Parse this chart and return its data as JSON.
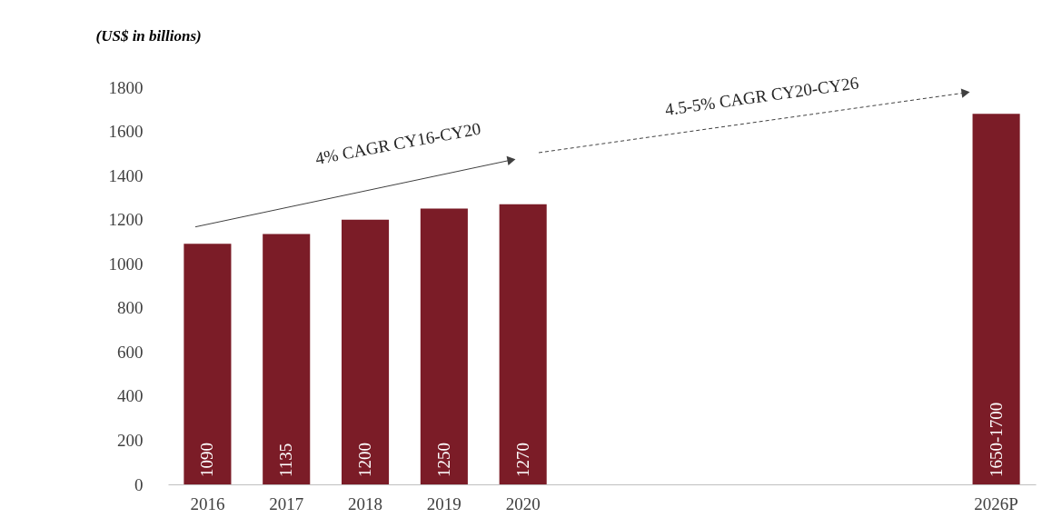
{
  "chart_data": {
    "type": "bar",
    "ylabel": "(US$ in billions)",
    "categories": [
      "2016",
      "2017",
      "2018",
      "2019",
      "2020",
      null,
      null,
      null,
      null,
      null,
      "2026P"
    ],
    "values": [
      1090,
      1135,
      1200,
      1250,
      1270,
      null,
      null,
      null,
      null,
      null,
      1680
    ],
    "value_labels": [
      "1090",
      "1135",
      "1200",
      "1250",
      "1270",
      null,
      null,
      null,
      null,
      null,
      "1650-1700"
    ],
    "color": "#7b1c27",
    "ylim": [
      0,
      1800
    ],
    "yticks": [
      0,
      200,
      400,
      600,
      800,
      1000,
      1200,
      1400,
      1600,
      1800
    ],
    "grid": false,
    "annotations": [
      "4% CAGR CY16-CY20",
      "4.5-5% CAGR CY20-CY26"
    ]
  }
}
